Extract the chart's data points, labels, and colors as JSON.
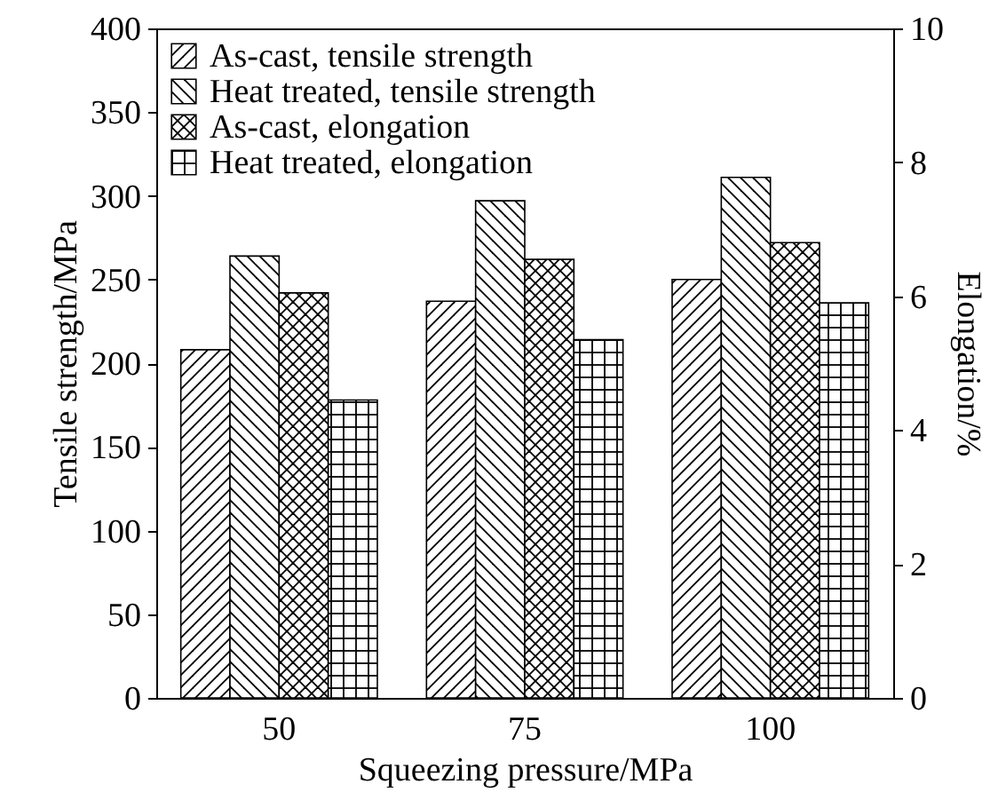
{
  "chart_data": {
    "type": "bar",
    "categories": [
      "50",
      "75",
      "100"
    ],
    "xlabel": "Squeezing pressure/MPa",
    "ylabel": "Tensile strength/MPa",
    "y2label": "Elongation/%",
    "series": [
      {
        "name": "As-cast, tensile strength",
        "color": "#000000",
        "values": [
          208,
          237,
          250
        ]
      },
      {
        "name": "Heat treated, tensile strength",
        "color": "#000000",
        "values": [
          264,
          297,
          311
        ]
      },
      {
        "name": "As-cast, elongation",
        "color": "#000000",
        "values": [
          6.05,
          6.55,
          6.8
        ],
        "axis": "y2"
      },
      {
        "name": "Heat treated, elongation",
        "color": "#000000",
        "values": [
          4.45,
          5.35,
          5.9
        ],
        "axis": "y2"
      }
    ],
    "ylim": [
      0,
      400
    ],
    "yticks": [
      0,
      50,
      100,
      150,
      200,
      250,
      300,
      350,
      400
    ],
    "y2lim": [
      0,
      10
    ],
    "y2ticks": [
      0,
      2,
      4,
      6,
      8,
      10
    ],
    "legend": "top left",
    "grid": false
  }
}
